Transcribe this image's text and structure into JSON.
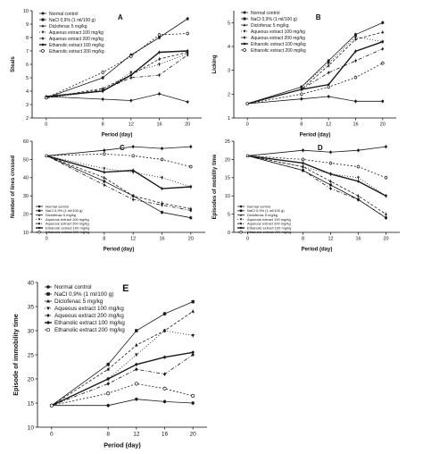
{
  "chart_data": [
    {
      "type": "line",
      "panel_label": "A",
      "xlabel": "Period (day)",
      "ylabel": "Steals",
      "x": [
        0,
        8,
        12,
        16,
        20
      ],
      "xlim": [
        -2,
        22
      ],
      "ylim": [
        2.0,
        10.0
      ],
      "yticks": [
        2,
        3,
        4,
        5,
        6,
        7,
        8,
        9,
        10
      ],
      "legend_position": "top-left",
      "series": [
        {
          "name": "Normal control",
          "values": [
            3.6,
            3.4,
            3.3,
            3.8,
            3.2
          ]
        },
        {
          "name": "NaCl 0,9% (1 ml/100 g)",
          "values": [
            3.5,
            5.0,
            6.7,
            8.0,
            9.4
          ]
        },
        {
          "name": "Diclofenac 5 mg/kg",
          "values": [
            3.5,
            4.2,
            5.2,
            6.4,
            6.9
          ]
        },
        {
          "name": "Aqueous extract 100 mg/kg",
          "values": [
            3.5,
            4.0,
            5.4,
            6.0,
            6.8
          ]
        },
        {
          "name": "Aqueous extract 200 mg/kg",
          "values": [
            3.5,
            4.1,
            5.0,
            5.2,
            6.7
          ]
        },
        {
          "name": "Ethanolic extract 100 mg/kg",
          "values": [
            3.6,
            4.0,
            5.2,
            6.9,
            7.0
          ]
        },
        {
          "name": "Ethanolic extract 200 mg/kg",
          "values": [
            3.5,
            5.4,
            6.6,
            8.2,
            8.3
          ]
        }
      ]
    },
    {
      "type": "line",
      "panel_label": "B",
      "xlabel": "Period (day)",
      "ylabel": "Licking",
      "x": [
        0,
        8,
        12,
        16,
        20
      ],
      "xlim": [
        -2,
        22
      ],
      "ylim": [
        1.0,
        5.5
      ],
      "yticks": [
        1,
        2,
        3,
        4,
        5
      ],
      "legend_position": "top-left",
      "series": [
        {
          "name": "Normal control",
          "values": [
            1.6,
            1.8,
            1.9,
            1.7,
            1.7
          ]
        },
        {
          "name": "NaCl 0,9% (1 ml/100 g)",
          "values": [
            1.6,
            2.3,
            3.4,
            4.5,
            5.0
          ]
        },
        {
          "name": "Diclofenac 5 mg/kg",
          "values": [
            1.6,
            2.2,
            3.2,
            4.3,
            4.6
          ]
        },
        {
          "name": "Aqueous extract 100 mg/kg",
          "values": [
            1.6,
            2.3,
            3.3,
            4.4,
            4.2
          ]
        },
        {
          "name": "Aqueous extract 200 mg/kg",
          "values": [
            1.6,
            2.2,
            2.9,
            3.4,
            3.9
          ]
        },
        {
          "name": "Ethanolic extract 100 mg/kg",
          "values": [
            1.6,
            2.2,
            2.4,
            3.8,
            4.2
          ]
        },
        {
          "name": "Ethanolic extract 200 mg/kg",
          "values": [
            1.6,
            2.0,
            2.3,
            2.7,
            3.3
          ]
        }
      ]
    },
    {
      "type": "line",
      "panel_label": "C",
      "xlabel": "Period (day)",
      "ylabel": "Number of lines crossed",
      "x": [
        0,
        8,
        12,
        16,
        20
      ],
      "xlim": [
        -2,
        22
      ],
      "ylim": [
        10,
        60
      ],
      "yticks": [
        10,
        20,
        30,
        40,
        50,
        60
      ],
      "legend_position": "bottom-left",
      "series": [
        {
          "name": "Normal control",
          "values": [
            52,
            55,
            57,
            56,
            57
          ]
        },
        {
          "name": "NaCl 0,9% (1 ml/100 g)",
          "values": [
            52,
            38,
            30,
            21,
            18
          ]
        },
        {
          "name": "Diclofenac 5 mg/kg",
          "values": [
            52,
            40,
            30,
            26,
            23
          ]
        },
        {
          "name": "Aqueous extract 100 mg/kg",
          "values": [
            52,
            45,
            43,
            40,
            35
          ]
        },
        {
          "name": "Aqueous extract 200 mg/kg",
          "values": [
            52,
            36,
            28,
            25,
            22
          ]
        },
        {
          "name": "Ethanolic extract 100 mg/kg",
          "values": [
            52,
            43,
            44,
            34,
            35
          ]
        },
        {
          "name": "Ethanolic extract 200 mg/kg",
          "values": [
            52,
            53,
            52,
            50,
            46
          ]
        }
      ]
    },
    {
      "type": "line",
      "panel_label": "D",
      "xlabel": "Period (day)",
      "ylabel": "Episodes of mobility time",
      "x": [
        0,
        8,
        12,
        16,
        20
      ],
      "xlim": [
        -2,
        22
      ],
      "ylim": [
        0,
        25
      ],
      "yticks": [
        0,
        5,
        10,
        15,
        20,
        25
      ],
      "legend_position": "bottom-left",
      "series": [
        {
          "name": "Normal control",
          "values": [
            21,
            22.5,
            22,
            22.5,
            23.5
          ]
        },
        {
          "name": "NaCl 0,9% (1 ml/100 g)",
          "values": [
            21,
            17,
            13,
            9,
            4
          ]
        },
        {
          "name": "Diclofenac 5 mg/kg",
          "values": [
            21,
            18,
            14,
            10,
            5
          ]
        },
        {
          "name": "Aqueous extract 100 mg/kg",
          "values": [
            21,
            18,
            16,
            15,
            10
          ]
        },
        {
          "name": "Aqueous extract 200 mg/kg",
          "values": [
            21,
            17,
            12,
            9,
            4
          ]
        },
        {
          "name": "Ethanolic extract 100 mg/kg",
          "values": [
            21,
            19,
            16,
            14,
            10
          ]
        },
        {
          "name": "Ethanolic extract 200 mg/kg",
          "values": [
            21,
            20,
            19,
            18,
            15
          ]
        }
      ]
    },
    {
      "type": "line",
      "panel_label": "E",
      "xlabel": "Period (day)",
      "ylabel": "Episode of immobility time",
      "x": [
        0,
        8,
        12,
        16,
        20
      ],
      "xlim": [
        -2,
        22
      ],
      "ylim": [
        10,
        40
      ],
      "yticks": [
        10,
        15,
        20,
        25,
        30,
        35,
        40
      ],
      "legend_position": "top-left",
      "series": [
        {
          "name": "Normal control",
          "values": [
            14.5,
            14.5,
            15.8,
            15.3,
            15.0
          ]
        },
        {
          "name": "NaCl 0,9% (1 ml/100 g)",
          "values": [
            14.5,
            23,
            30,
            33.5,
            36
          ]
        },
        {
          "name": "Diclofenac 5 mg/kg",
          "values": [
            14.5,
            22,
            27,
            30,
            34
          ]
        },
        {
          "name": "Aqueous extract 100 mg/kg",
          "values": [
            14.5,
            20,
            25,
            30,
            29
          ]
        },
        {
          "name": "Aqueous extract 200 mg/kg",
          "values": [
            14.5,
            19,
            22,
            21,
            25
          ]
        },
        {
          "name": "Ethanolic extract 100 mg/kg",
          "values": [
            14.5,
            20,
            23,
            24.5,
            25.5
          ]
        },
        {
          "name": "Ethanolic extract 200 mg/kg",
          "values": [
            14.5,
            17,
            19,
            18,
            16.5
          ]
        }
      ]
    }
  ],
  "colors": {
    "line": "#1a1a1a",
    "axis": "#000000",
    "background": "#ffffff"
  }
}
